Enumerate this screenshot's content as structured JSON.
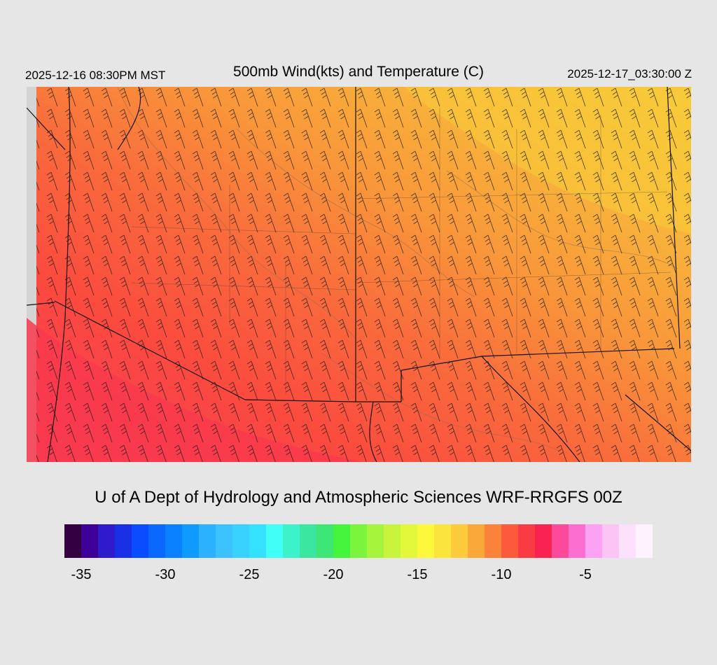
{
  "header": {
    "valid_local": "2025-12-16 08:30PM MST",
    "title": "500mb Wind(kts) and Temperature (C)",
    "valid_utc": "2025-12-17_03:30:00 Z"
  },
  "map": {
    "field": "500mb temperature (C) with wind barbs (kts)",
    "region": "US Southwest / Intermountain West",
    "temperature_range_shown": [
      -13,
      -8
    ],
    "barb_direction": "from north-northwest",
    "colors": {
      "background": "#e6e6e6",
      "no_data": "#d4d4d4",
      "coldest_area": "#f8c43a",
      "warmest_area": "#f8394d",
      "borders": "#111111",
      "isotherm": "#8a6a52"
    }
  },
  "credit": "U of A Dept of Hydrology and Atmospheric Sciences WRF-RRGFS 00Z",
  "colorbar": {
    "colors": [
      "#34003f",
      "#3d0099",
      "#2e1bcc",
      "#1a30e6",
      "#0a4cff",
      "#0a68ff",
      "#0a82ff",
      "#0f9aff",
      "#2ab1ff",
      "#3cc3ff",
      "#39d2ff",
      "#34e1ff",
      "#40fff4",
      "#3df2cb",
      "#3be6a0",
      "#3ee675",
      "#45f53d",
      "#7af43d",
      "#a6f53c",
      "#c8f53b",
      "#e3f73b",
      "#fdf83b",
      "#fbe43b",
      "#fbcb3b",
      "#fba83b",
      "#fb823b",
      "#fb5b3b",
      "#fb3b44",
      "#f8244f",
      "#fb4a9a",
      "#fb6fd0",
      "#fba2f5",
      "#fcc4f5",
      "#fde0fb",
      "#fdf2fd"
    ],
    "tick_labels": [
      "-35",
      "-30",
      "-25",
      "-20",
      "-15",
      "-10",
      "-5"
    ],
    "tick_values": [
      -35,
      -30,
      -25,
      -20,
      -15,
      -10,
      -5
    ],
    "min": -36,
    "max": -1
  }
}
